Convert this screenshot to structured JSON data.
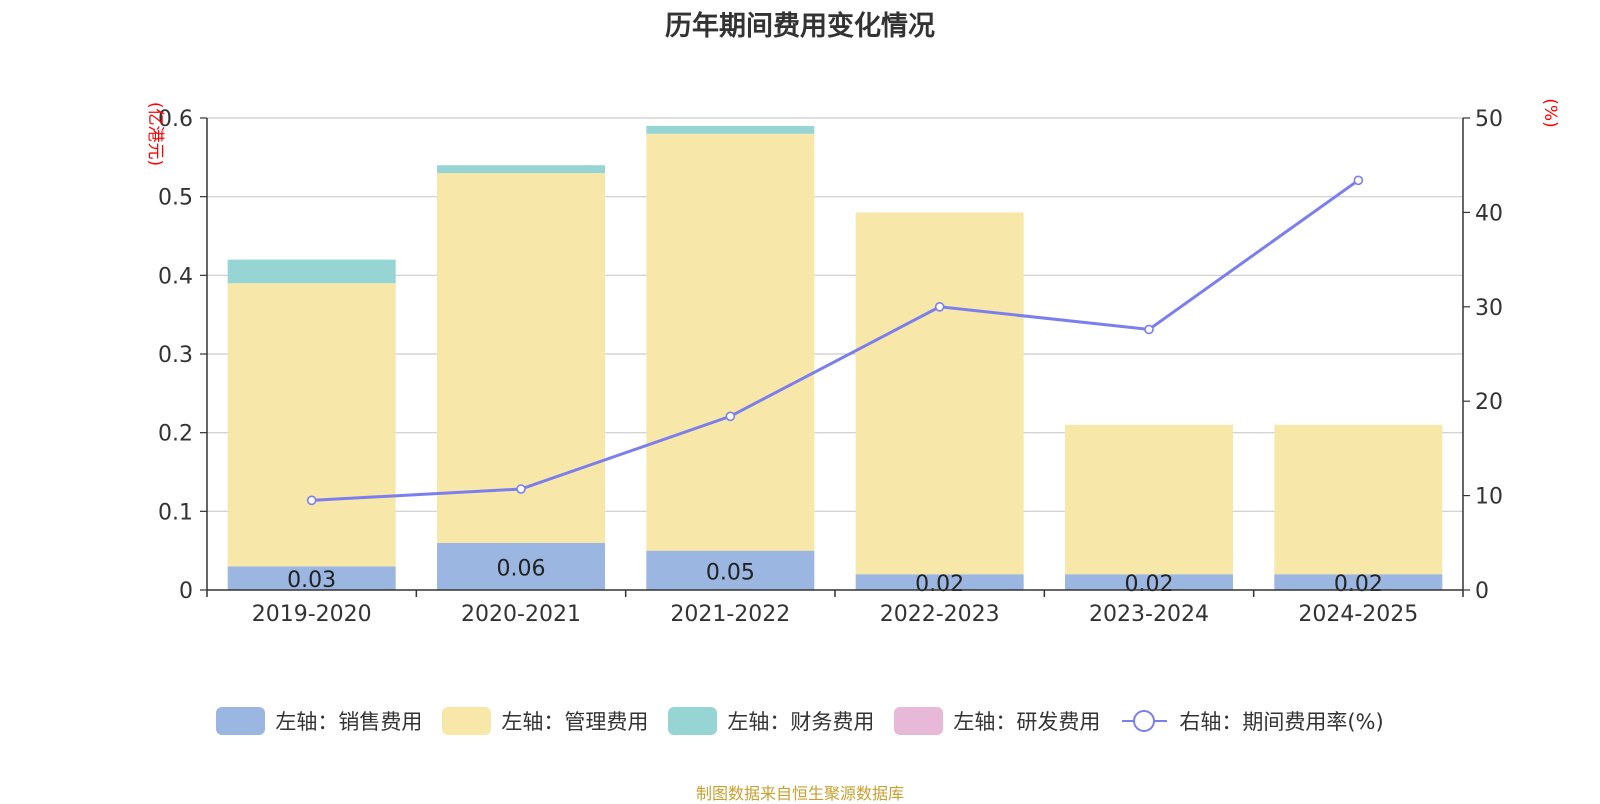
{
  "chart_data": {
    "type": "bar",
    "title": "历年期间费用变化情况",
    "categories": [
      "2019-2020",
      "2020-2021",
      "2021-2022",
      "2022-2023",
      "2023-2024",
      "2024-2025"
    ],
    "left_axis": {
      "label": "(亿港元)",
      "min": 0,
      "max": 0.6,
      "ticks": [
        "0",
        "0.1",
        "0.2",
        "0.3",
        "0.4",
        "0.5",
        "0.6"
      ]
    },
    "right_axis": {
      "label": "(%)",
      "min": 0,
      "max": 50,
      "ticks": [
        "0",
        "10",
        "20",
        "30",
        "40",
        "50"
      ]
    },
    "series": [
      {
        "name": "左轴：销售费用",
        "kind": "bar",
        "axis": "left",
        "color": "#9bb6e0",
        "values": [
          0.03,
          0.06,
          0.05,
          0.02,
          0.02,
          0.02
        ],
        "labels": [
          "0.03",
          "0.06",
          "0.05",
          "0.02",
          "0.02",
          "0.02"
        ]
      },
      {
        "name": "左轴：管理费用",
        "kind": "bar",
        "axis": "left",
        "color": "#f7e7a8",
        "values": [
          0.36,
          0.47,
          0.53,
          0.46,
          0.19,
          0.19
        ]
      },
      {
        "name": "左轴：财务费用",
        "kind": "bar",
        "axis": "left",
        "color": "#97d4d4",
        "values": [
          0.03,
          0.01,
          0.01,
          0,
          0,
          0
        ]
      },
      {
        "name": "左轴：研发费用",
        "kind": "bar",
        "axis": "left",
        "color": "#e8b8d8",
        "values": [
          0,
          0,
          0,
          0,
          0,
          0
        ]
      },
      {
        "name": "右轴：期间费用率(%)",
        "kind": "line",
        "axis": "right",
        "color": "#7b7fee",
        "values": [
          9.5,
          10.7,
          18.4,
          30,
          27.6,
          43.4
        ]
      }
    ],
    "source": "制图数据来自恒生聚源数据库"
  }
}
